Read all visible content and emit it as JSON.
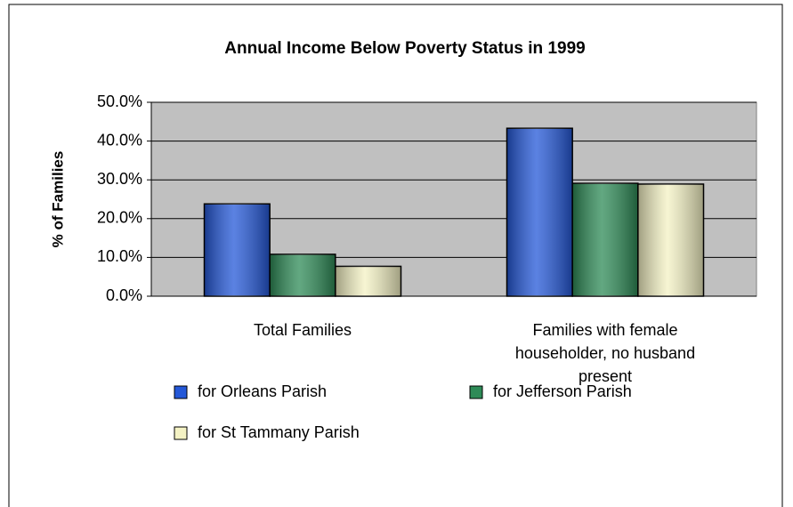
{
  "chart_data": {
    "type": "bar",
    "title": "Annual Income Below Poverty Status in 1999",
    "y_label": "% of Families",
    "categories": [
      "Total Families",
      "Families with female householder, no husband present"
    ],
    "series": [
      {
        "name": "for Orleans Parish",
        "color": "#2458d8",
        "values": [
          23.8,
          43.3
        ]
      },
      {
        "name": "for Jefferson Parish",
        "color": "#2e8b57",
        "values": [
          10.8,
          29.1
        ]
      },
      {
        "name": "for St Tammany Parish",
        "color": "#f4f2c4",
        "values": [
          7.7,
          28.9
        ]
      }
    ],
    "ylim": [
      0,
      50
    ],
    "yticks": [
      {
        "value": 0,
        "label": "0.0%"
      },
      {
        "value": 10,
        "label": "10.0%"
      },
      {
        "value": 20,
        "label": "20.0%"
      },
      {
        "value": 30,
        "label": "30.0%"
      },
      {
        "value": 40,
        "label": "40.0%"
      },
      {
        "value": 50,
        "label": "50.0%"
      }
    ],
    "grid": true,
    "legend": "bottom"
  }
}
